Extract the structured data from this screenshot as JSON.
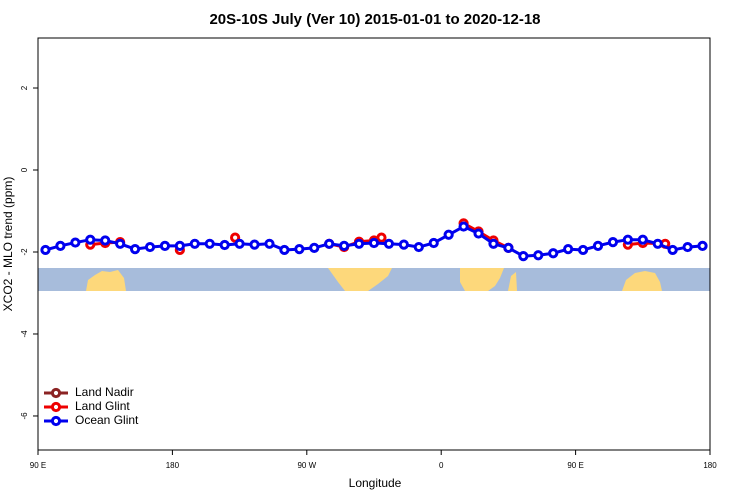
{
  "chart_data": {
    "type": "line",
    "title": "20S-10S July (Ver 10)   2015-01-01 to 2020-12-18",
    "x_label": "Longitude",
    "y_label": "XCO2 - MLO trend (ppm)",
    "xlim": [
      -270,
      180
    ],
    "xticks": [
      {
        "value": -270,
        "label": "90 E"
      },
      {
        "value": -180,
        "label": "180"
      },
      {
        "value": -90,
        "label": "90 W"
      },
      0,
      {
        "value": 90,
        "label": "90 E"
      },
      {
        "value": 180,
        "label": "180"
      }
    ],
    "ylim": [
      -6.83,
      3.22
    ],
    "yticks": [
      -6,
      -4,
      -2,
      0,
      2
    ],
    "legend": "bottom-left",
    "series": [
      {
        "name": "Land Nadir",
        "color": "#8b2323",
        "x": [],
        "values": []
      },
      {
        "name": "Land Glint",
        "color": "#ee0000",
        "x": [
          -235,
          -225,
          -215,
          -200,
          -175,
          -155,
          -138,
          -100,
          -75,
          -65,
          -55,
          -45,
          -40,
          0,
          15,
          25,
          35,
          45,
          100,
          125,
          135,
          150
        ],
        "values": [
          -1.82,
          -1.78,
          -1.76,
          null,
          -1.95,
          null,
          -1.65,
          null,
          -1.8,
          -1.88,
          -1.75,
          -1.72,
          -1.65,
          null,
          -1.3,
          -1.5,
          -1.72,
          -1.9,
          null,
          -1.82,
          -1.78,
          -1.8
        ]
      },
      {
        "name": "Ocean Glint",
        "color": "#0000ee",
        "x": [
          -265,
          -255,
          -245,
          -235,
          -225,
          -215,
          -205,
          -195,
          -185,
          -175,
          -165,
          -155,
          -145,
          -135,
          -125,
          -115,
          -105,
          -95,
          -85,
          -75,
          -65,
          -55,
          -45,
          -35,
          -25,
          -15,
          -5,
          5,
          15,
          25,
          35,
          45,
          55,
          65,
          75,
          85,
          95,
          105,
          115,
          125,
          135,
          145,
          155,
          165,
          175
        ],
        "values": [
          -1.95,
          -1.85,
          -1.77,
          -1.7,
          -1.72,
          -1.8,
          -1.93,
          -1.88,
          -1.85,
          -1.85,
          -1.8,
          -1.8,
          -1.83,
          -1.8,
          -1.82,
          -1.8,
          -1.95,
          -1.93,
          -1.9,
          -1.8,
          -1.85,
          -1.8,
          -1.78,
          -1.8,
          -1.82,
          -1.88,
          -1.78,
          -1.58,
          -1.38,
          -1.55,
          -1.8,
          -1.9,
          -2.1,
          -2.08,
          -2.03,
          -1.93,
          -1.95,
          -1.85,
          -1.76,
          -1.7,
          -1.7,
          -1.8,
          -1.95,
          -1.88,
          -1.85
        ]
      }
    ]
  }
}
